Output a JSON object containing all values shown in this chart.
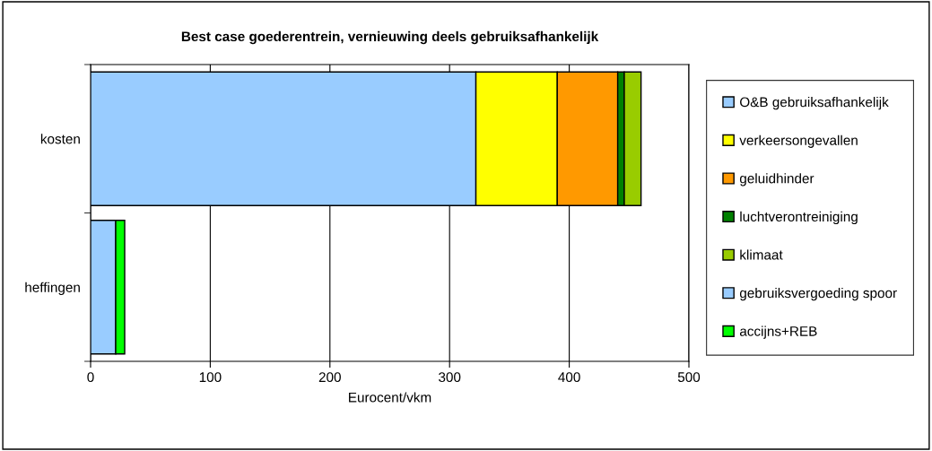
{
  "chart_data": {
    "type": "bar",
    "orientation": "horizontal",
    "stacked": true,
    "title": "Best case goederentrein, vernieuwing deels gebruiksafhankelijk",
    "xlabel": "Eurocent/vkm",
    "categories": [
      "kosten",
      "heffingen"
    ],
    "series": [
      {
        "name": "O&B gebruiksafhankelijk",
        "color": "#99ccff",
        "values": [
          322,
          null
        ]
      },
      {
        "name": "verkeersongevallen",
        "color": "#ffff00",
        "values": [
          68,
          null
        ]
      },
      {
        "name": "geluidhinder",
        "color": "#ff9900",
        "values": [
          50.5,
          null
        ]
      },
      {
        "name": "luchtverontreiniging",
        "color": "#008000",
        "values": [
          5.5,
          null
        ]
      },
      {
        "name": "klimaat",
        "color": "#99cc00",
        "values": [
          14,
          null
        ]
      },
      {
        "name": "gebruiksvergoeding spoor",
        "color": "#99ccff",
        "values": [
          null,
          21
        ]
      },
      {
        "name": "accijns+REB",
        "color": "#00ff00",
        "values": [
          null,
          7.5
        ]
      }
    ],
    "xlim": [
      0,
      500
    ],
    "xticks": [
      0,
      100,
      200,
      300,
      400,
      500
    ],
    "grid": "x",
    "legend": "right"
  }
}
